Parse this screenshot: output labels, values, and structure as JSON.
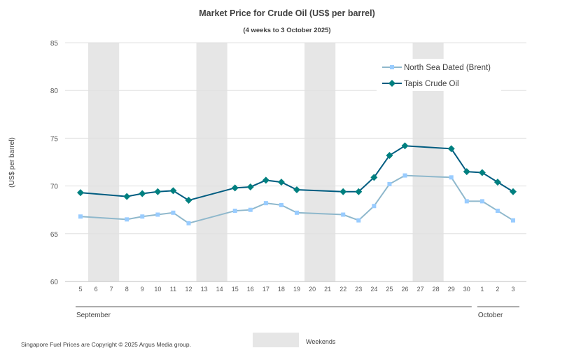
{
  "chart_data": {
    "type": "line",
    "title": "Market Price for Crude Oil (US$ per barrel)",
    "subtitle": "(4 weeks to 3 October 2025)",
    "ylabel": "(US$ per barrel)",
    "xlabel": "",
    "ylim": [
      60,
      85
    ],
    "yticks": [
      60,
      65,
      70,
      75,
      80,
      85
    ],
    "grid": true,
    "legend_position": "top-right",
    "categories": [
      "5",
      "6",
      "7",
      "8",
      "9",
      "10",
      "11",
      "12",
      "13",
      "14",
      "15",
      "16",
      "17",
      "18",
      "19",
      "20",
      "21",
      "22",
      "23",
      "24",
      "25",
      "26",
      "27",
      "28",
      "29",
      "30",
      "1",
      "2",
      "3"
    ],
    "month_labels": [
      {
        "label": "September",
        "from": "5",
        "to": "30"
      },
      {
        "label": "October",
        "from": "1",
        "to": "3"
      }
    ],
    "weekends": [
      [
        "6",
        "7"
      ],
      [
        "13",
        "14"
      ],
      [
        "20",
        "21"
      ],
      [
        "27",
        "28"
      ]
    ],
    "weekend_legend": "Weekends",
    "series": [
      {
        "name": "North Sea Dated (Brent)",
        "color": "#8fb8cc",
        "marker_color": "#99ccff",
        "marker": "square",
        "values": [
          66.8,
          null,
          null,
          66.5,
          66.8,
          67.0,
          67.2,
          66.1,
          null,
          null,
          67.4,
          67.5,
          68.2,
          68.0,
          67.2,
          null,
          null,
          67.0,
          66.4,
          67.9,
          70.2,
          71.1,
          null,
          null,
          70.9,
          68.4,
          68.4,
          67.4,
          66.4
        ]
      },
      {
        "name": "Tapis Crude Oil",
        "color": "#005c80",
        "marker_color": "#008080",
        "marker": "diamond",
        "values": [
          69.3,
          null,
          null,
          68.9,
          69.2,
          69.4,
          69.5,
          68.5,
          null,
          null,
          69.8,
          69.9,
          70.6,
          70.4,
          69.6,
          null,
          null,
          69.4,
          69.4,
          70.9,
          73.2,
          74.2,
          null,
          null,
          73.9,
          71.5,
          71.4,
          70.4,
          69.4
        ]
      }
    ],
    "footer": "Singapore Fuel Prices are Copyright © 2025 Argus Media group."
  }
}
